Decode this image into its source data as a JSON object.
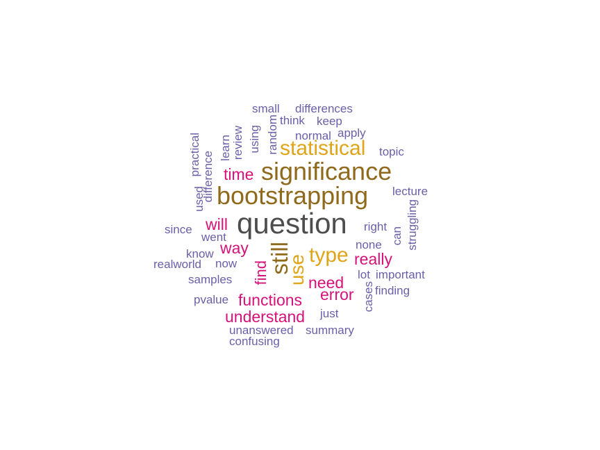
{
  "colors": {
    "tier0": "#4d4d4d",
    "tier1": "#8f6a1d",
    "tier2": "#e0a419",
    "tier3": "#d6117a",
    "tier4": "#6a5fa8"
  },
  "words": {
    "question": "question",
    "bootstrapping": "bootstrapping",
    "significance": "significance",
    "statistical": "statistical",
    "still": "still",
    "use": "use",
    "type": "type",
    "time": "time",
    "will": "will",
    "way": "way",
    "find": "find",
    "really": "really",
    "need": "need",
    "error": "error",
    "functions": "functions",
    "understand": "understand",
    "small": "small",
    "differences": "differences",
    "think": "think",
    "keep": "keep",
    "random": "random",
    "normal": "normal",
    "apply": "apply",
    "using": "using",
    "review": "review",
    "learn": "learn",
    "practical": "practical",
    "difference": "difference",
    "used": "used",
    "topic": "topic",
    "lecture": "lecture",
    "since": "since",
    "went": "went",
    "know": "know",
    "realworld": "realworld",
    "now": "now",
    "samples": "samples",
    "pvalue": "pvalue",
    "right": "right",
    "can": "can",
    "struggling": "struggling",
    "none": "none",
    "lot": "lot",
    "important": "important",
    "cases": "cases",
    "finding": "finding",
    "just": "just",
    "unanswered": "unanswered",
    "summary": "summary",
    "confusing": "confusing"
  }
}
